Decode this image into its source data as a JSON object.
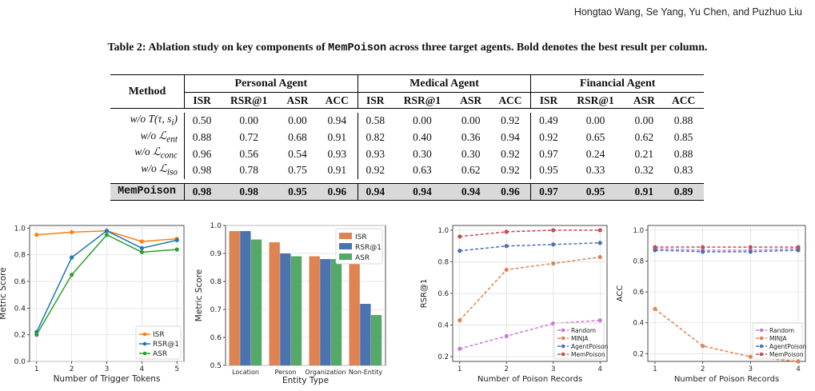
{
  "header": {
    "authors": "Hongtao Wang, Se Yang, Yu Chen, and Puzhuo Liu"
  },
  "caption": {
    "prefix": "Table 2: Ablation study on key components of ",
    "system": "MemPoison",
    "suffix": " across three target agents. Bold denotes the best result per column."
  },
  "table": {
    "method_header": "Method",
    "groups": [
      "Personal Agent",
      "Medical Agent",
      "Financial Agent"
    ],
    "metrics": [
      "ISR",
      "RSR@1",
      "ASR",
      "ACC"
    ],
    "rows": [
      {
        "prefix": "w/o ",
        "method": "T(τ, s",
        "sub": "i",
        "end": ")",
        "values": [
          "0.50",
          "0.00",
          "0.00",
          "0.94",
          "0.58",
          "0.00",
          "0.00",
          "0.92",
          "0.49",
          "0.00",
          "0.00",
          "0.88"
        ]
      },
      {
        "prefix": "w/o ",
        "method": "ℒ",
        "sub": "ent",
        "end": "",
        "values": [
          "0.88",
          "0.72",
          "0.68",
          "0.91",
          "0.82",
          "0.40",
          "0.36",
          "0.94",
          "0.92",
          "0.65",
          "0.62",
          "0.85"
        ]
      },
      {
        "prefix": "w/o ",
        "method": "ℒ",
        "sub": "conc",
        "end": "",
        "values": [
          "0.96",
          "0.56",
          "0.54",
          "0.93",
          "0.93",
          "0.30",
          "0.30",
          "0.92",
          "0.97",
          "0.24",
          "0.21",
          "0.88"
        ]
      },
      {
        "prefix": "w/o ",
        "method": "ℒ",
        "sub": "iso",
        "end": "",
        "values": [
          "0.98",
          "0.78",
          "0.75",
          "0.91",
          "0.92",
          "0.63",
          "0.62",
          "0.92",
          "0.95",
          "0.33",
          "0.32",
          "0.83"
        ]
      }
    ],
    "final": {
      "method": "MemPoison",
      "values": [
        "0.98",
        "0.98",
        "0.95",
        "0.96",
        "0.94",
        "0.94",
        "0.94",
        "0.96",
        "0.97",
        "0.95",
        "0.91",
        "0.89"
      ]
    }
  },
  "chart_data": [
    {
      "type": "line",
      "xlabel": "Number of Trigger Tokens",
      "ylabel": "Metric Score",
      "x": [
        1,
        2,
        3,
        4,
        5
      ],
      "xlim": [
        0.8,
        5.2
      ],
      "ylim": [
        0.0,
        1.02
      ],
      "yticks": [
        0.0,
        0.2,
        0.4,
        0.6,
        0.8,
        1.0
      ],
      "ytick_labels": [
        "0.0",
        "0.2",
        "0.4",
        "0.6",
        "0.8",
        "1.0"
      ],
      "grid": true,
      "legend": "bottom-right",
      "series": [
        {
          "name": "ISR",
          "color": "#ff7f0e",
          "values": [
            0.95,
            0.97,
            0.98,
            0.9,
            0.92
          ]
        },
        {
          "name": "RSR@1",
          "color": "#1f77b4",
          "values": [
            0.22,
            0.78,
            0.98,
            0.85,
            0.91
          ]
        },
        {
          "name": "ASR",
          "color": "#2ca02c",
          "values": [
            0.2,
            0.65,
            0.95,
            0.82,
            0.84
          ]
        }
      ]
    },
    {
      "type": "bar",
      "xlabel": "Entity Type",
      "ylabel": "Metric Score",
      "categories": [
        "Location",
        "Person",
        "Organization",
        "Non-Entity"
      ],
      "ylim": [
        0.5,
        1.0
      ],
      "yticks": [
        0.5,
        0.6,
        0.7,
        0.8,
        0.9,
        1.0
      ],
      "ytick_labels": [
        "0.5",
        "0.6",
        "0.7",
        "0.8",
        "0.9",
        "1.0"
      ],
      "grid": true,
      "legend": "top-right",
      "series": [
        {
          "name": "ISR",
          "color": "#dd8452",
          "values": [
            0.98,
            0.94,
            0.89,
            0.88
          ]
        },
        {
          "name": "RSR@1",
          "color": "#4c72b0",
          "values": [
            0.98,
            0.9,
            0.88,
            0.72
          ]
        },
        {
          "name": "ASR",
          "color": "#55a868",
          "values": [
            0.95,
            0.89,
            0.88,
            0.68
          ]
        }
      ]
    },
    {
      "type": "line",
      "xlabel": "Number of Poison Records",
      "ylabel": "RSR@1",
      "x": [
        1,
        2,
        3,
        4
      ],
      "xlim": [
        0.85,
        4.15
      ],
      "ylim": [
        0.17,
        1.03
      ],
      "yticks": [
        0.2,
        0.4,
        0.6,
        0.8,
        1.0
      ],
      "ytick_labels": [
        "0.2",
        "0.4",
        "0.6",
        "0.8",
        "1.0"
      ],
      "grid": true,
      "legend": "bottom-right",
      "series": [
        {
          "name": "Random",
          "color": "#cc79d6",
          "values": [
            0.25,
            0.33,
            0.41,
            0.43
          ]
        },
        {
          "name": "MINJA",
          "color": "#dd8452",
          "values": [
            0.43,
            0.75,
            0.79,
            0.83
          ]
        },
        {
          "name": "AgentPoison",
          "color": "#4c72b0",
          "values": [
            0.87,
            0.9,
            0.91,
            0.92
          ]
        },
        {
          "name": "MemPoison",
          "color": "#c44e52",
          "values": [
            0.96,
            0.99,
            1.0,
            1.0
          ]
        }
      ]
    },
    {
      "type": "line",
      "xlabel": "Number of Poison Records",
      "ylabel": "ACC",
      "x": [
        1,
        2,
        3,
        4
      ],
      "xlim": [
        0.85,
        4.15
      ],
      "ylim": [
        0.15,
        1.03
      ],
      "yticks": [
        0.2,
        0.4,
        0.6,
        0.8,
        1.0
      ],
      "ytick_labels": [
        "0.2",
        "0.4",
        "0.6",
        "0.8",
        "1.0"
      ],
      "grid": true,
      "legend": "bottom-right",
      "series": [
        {
          "name": "Random",
          "color": "#cc79d6",
          "values": [
            0.88,
            0.87,
            0.87,
            0.88
          ]
        },
        {
          "name": "MINJA",
          "color": "#dd8452",
          "values": [
            0.49,
            0.25,
            0.18,
            0.15
          ]
        },
        {
          "name": "AgentPoison",
          "color": "#4c72b0",
          "values": [
            0.87,
            0.86,
            0.86,
            0.87
          ]
        },
        {
          "name": "MemPoison",
          "color": "#c44e52",
          "values": [
            0.89,
            0.89,
            0.89,
            0.89
          ]
        }
      ]
    }
  ]
}
